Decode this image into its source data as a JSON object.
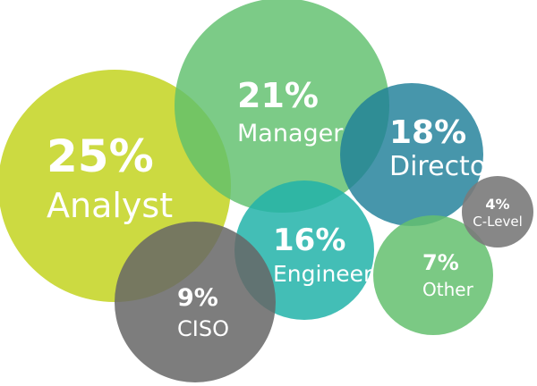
{
  "chart_data": {
    "type": "bubble",
    "title": "",
    "series": [
      {
        "label": "Analyst",
        "value": 25,
        "display": "25%",
        "color": "#c3d420"
      },
      {
        "label": "Manager",
        "value": 21,
        "display": "21%",
        "color": "#5fbf6c"
      },
      {
        "label": "Director",
        "value": 18,
        "display": "18%",
        "color": "#1e7f98"
      },
      {
        "label": "Engineer",
        "value": 16,
        "display": "16%",
        "color": "#22b3a9"
      },
      {
        "label": "CISO",
        "value": 9,
        "display": "9%",
        "color": "#666666"
      },
      {
        "label": "Other",
        "value": 7,
        "display": "7%",
        "color": "#64bf6e"
      },
      {
        "label": "C-Level",
        "value": 4,
        "display": "4%",
        "color": "#7a7a7a"
      }
    ]
  }
}
